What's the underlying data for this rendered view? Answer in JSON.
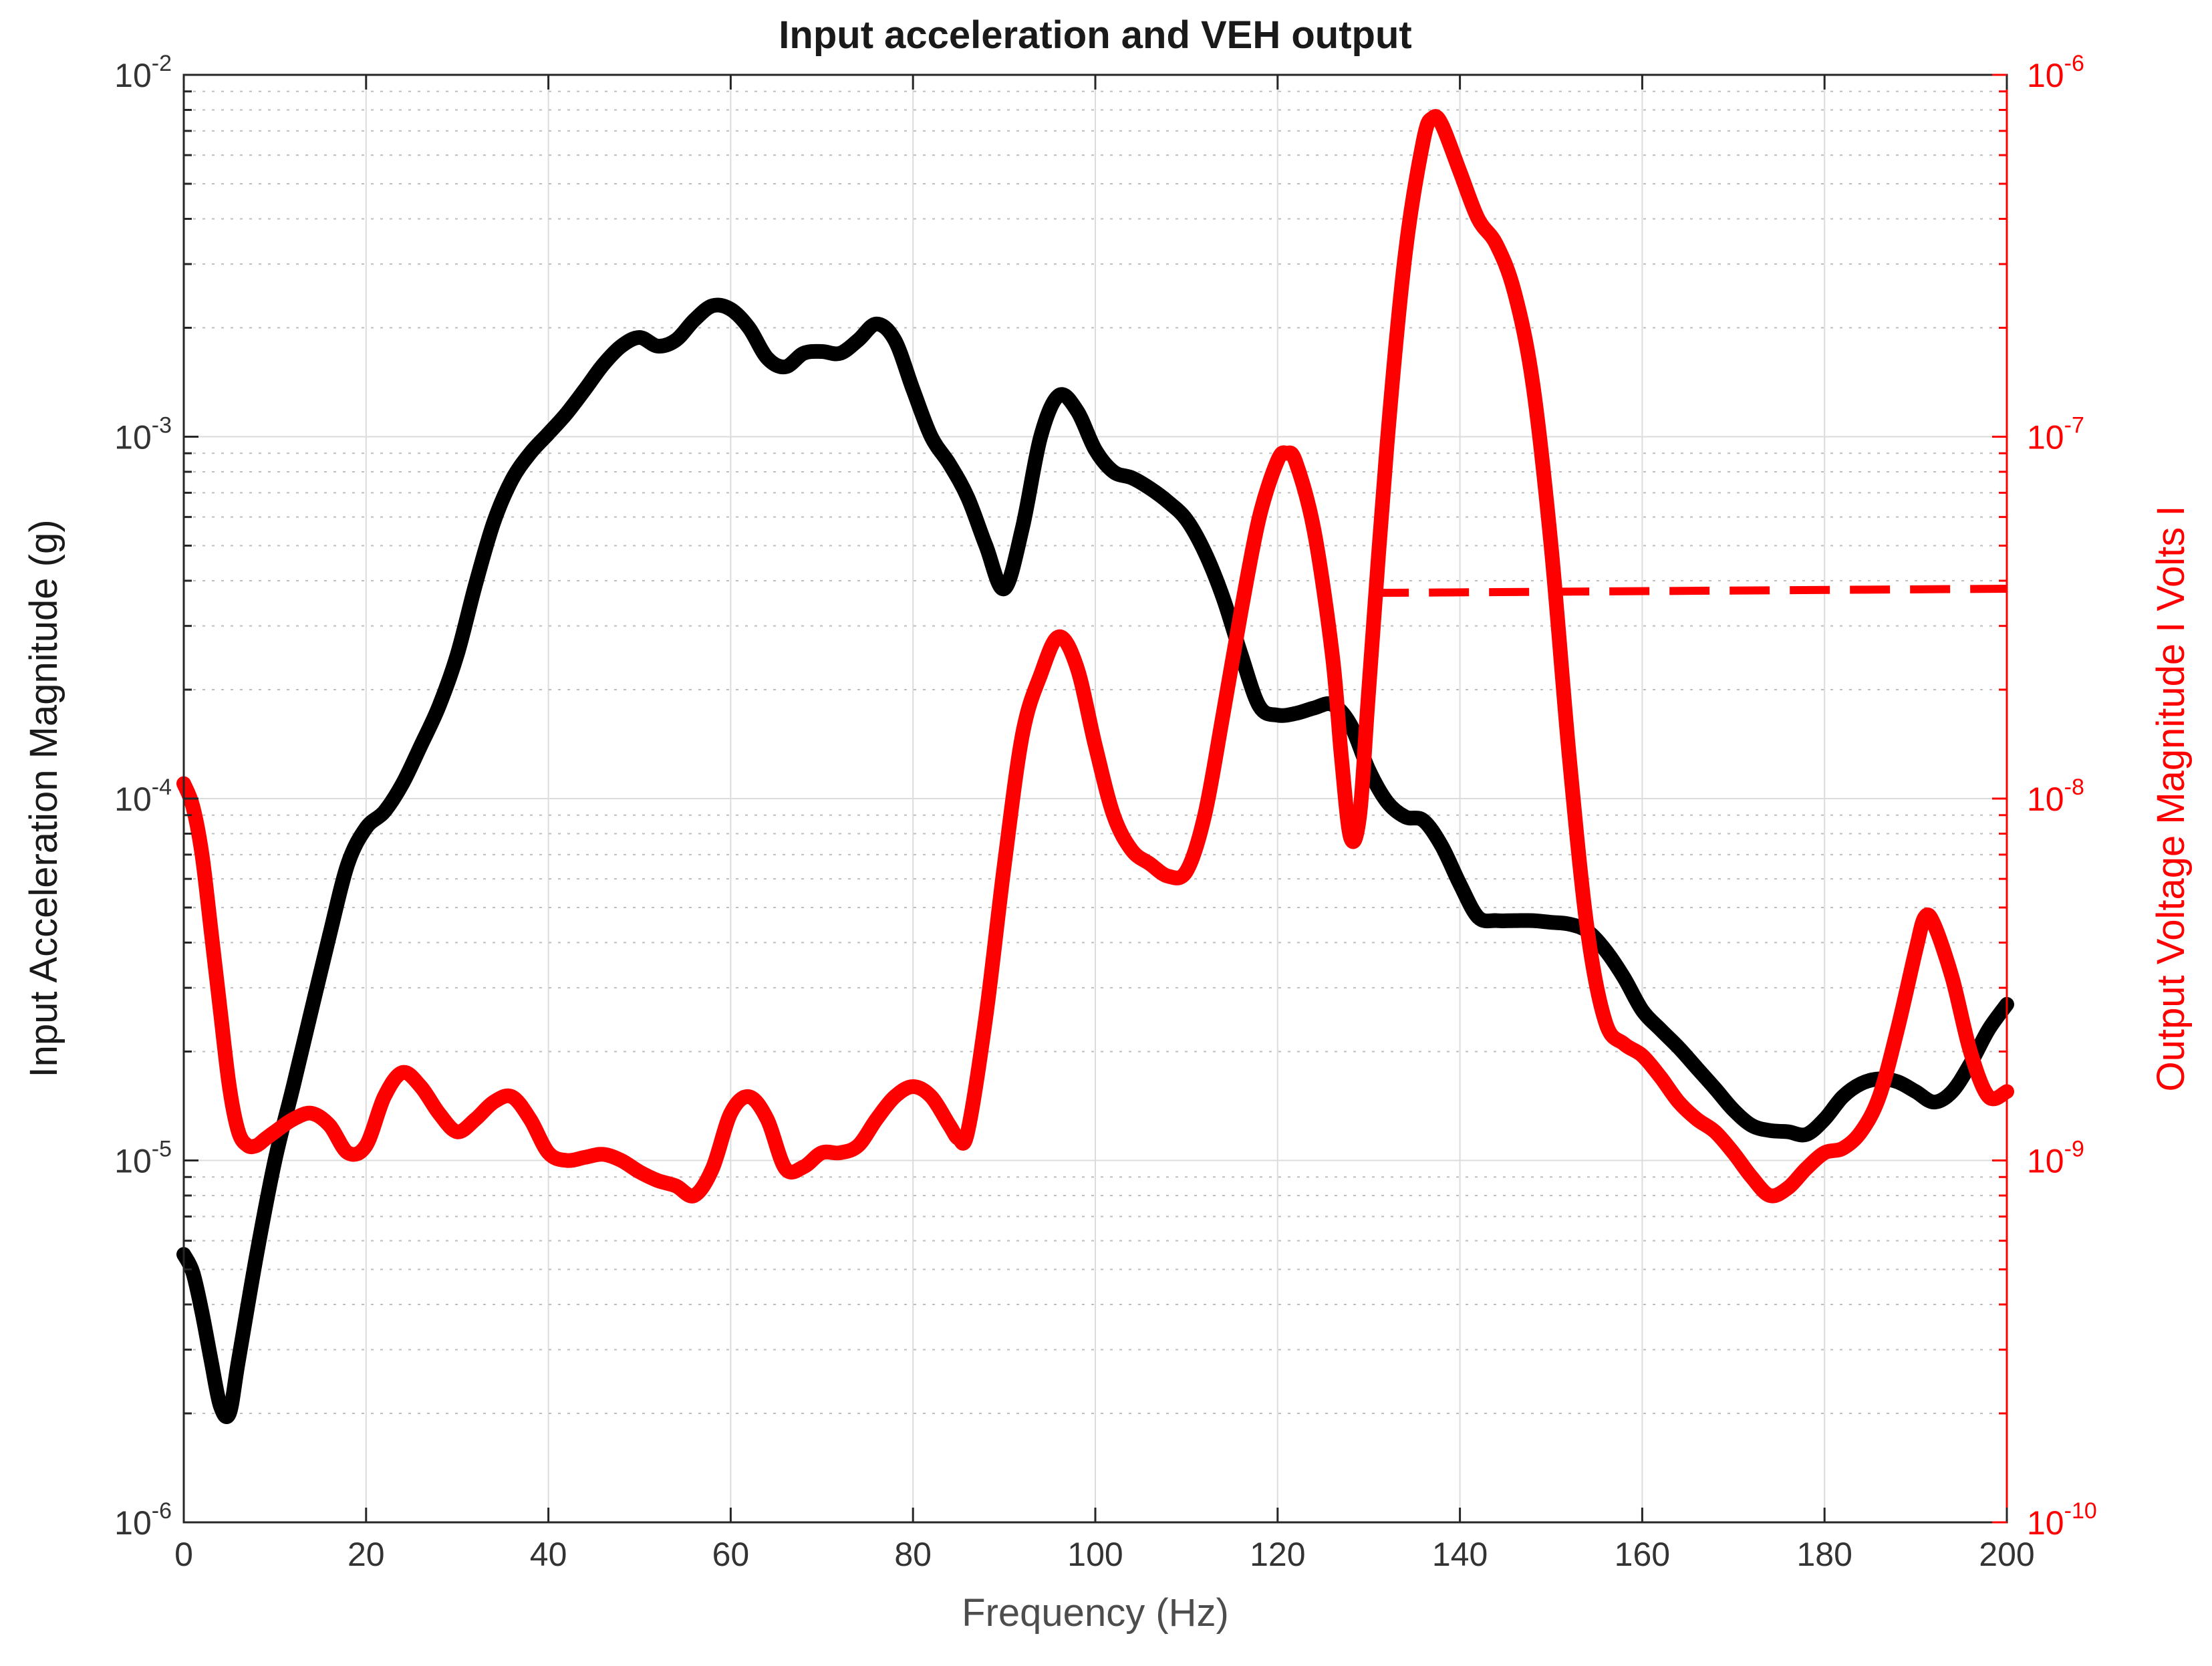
{
  "chart_data": {
    "type": "line",
    "title": "Input acceleration and VEH output",
    "xlabel": "Frequency (Hz)",
    "xlim": [
      0,
      200
    ],
    "xticks": [
      0,
      20,
      40,
      60,
      80,
      100,
      120,
      140,
      160,
      180,
      200
    ],
    "grid": true,
    "left_axis": {
      "label": "Input Acceleration Magnitude (g)",
      "scale": "log",
      "ylim": [
        1e-06,
        0.01
      ],
      "tick_exponents": [
        -6,
        -5,
        -4,
        -3,
        -2
      ],
      "color": "#000000"
    },
    "right_axis": {
      "label": "Output Voltage Magnitude I Volts I",
      "scale": "log",
      "ylim": [
        1e-10,
        1e-06
      ],
      "tick_exponents": [
        -10,
        -9,
        -8,
        -7,
        -6
      ],
      "color": "#ff0000"
    },
    "series": [
      {
        "axis": "left",
        "color": "#000000",
        "style": "solid",
        "x": [
          0,
          1,
          2,
          3,
          4,
          5,
          6,
          8,
          10,
          12,
          14,
          16,
          18,
          20,
          22,
          24,
          26,
          28,
          30,
          32,
          34,
          36,
          38,
          40,
          42,
          44,
          46,
          48,
          50,
          52,
          54,
          56,
          58,
          60,
          62,
          64,
          66,
          68,
          70,
          72,
          74,
          76,
          78,
          80,
          82,
          84,
          86,
          88,
          90,
          92,
          94,
          96,
          98,
          100,
          102,
          104,
          106,
          108,
          110,
          112,
          114,
          116,
          118,
          120,
          122,
          124,
          126,
          128,
          130,
          132,
          134,
          136,
          138,
          140,
          142,
          144,
          146,
          148,
          150,
          152,
          154,
          156,
          158,
          160,
          162,
          164,
          166,
          168,
          170,
          172,
          174,
          176,
          178,
          180,
          182,
          184,
          186,
          188,
          190,
          192,
          194,
          196,
          198,
          200
        ],
        "y": [
          5.5e-06,
          4.9e-06,
          3.8e-06,
          2.8e-06,
          2.1e-06,
          2e-06,
          2.8e-06,
          5.5e-06,
          1e-05,
          1.6e-05,
          2.6e-05,
          4.2e-05,
          6.6e-05,
          8.3e-05,
          9.2e-05,
          0.00011,
          0.00014,
          0.00018,
          0.00025,
          0.00039,
          0.00058,
          0.00076,
          0.0009,
          0.00102,
          0.00116,
          0.00135,
          0.00158,
          0.00178,
          0.00188,
          0.00178,
          0.00185,
          0.0021,
          0.0023,
          0.00225,
          0.002,
          0.00165,
          0.00156,
          0.0017,
          0.00172,
          0.0017,
          0.00185,
          0.00205,
          0.00185,
          0.00135,
          0.001,
          0.00084,
          0.00068,
          0.0005,
          0.00038,
          0.00056,
          0.001,
          0.0013,
          0.00118,
          0.00092,
          0.0008,
          0.00077,
          0.00072,
          0.00066,
          0.00059,
          0.00048,
          0.00036,
          0.00025,
          0.00018,
          0.00017,
          0.000172,
          0.000178,
          0.000182,
          0.00016,
          0.00012,
          9.8e-05,
          8.9e-05,
          8.7e-05,
          7.4e-05,
          5.8e-05,
          4.7e-05,
          4.6e-05,
          4.6e-05,
          4.6e-05,
          4.55e-05,
          4.5e-05,
          4.3e-05,
          3.8e-05,
          3.2e-05,
          2.6e-05,
          2.3e-05,
          2.05e-05,
          1.8e-05,
          1.58e-05,
          1.38e-05,
          1.25e-05,
          1.21e-05,
          1.2e-05,
          1.18e-05,
          1.3e-05,
          1.5e-05,
          1.63e-05,
          1.68e-05,
          1.65e-05,
          1.55e-05,
          1.45e-05,
          1.55e-05,
          1.85e-05,
          2.3e-05,
          2.7e-05
        ]
      },
      {
        "axis": "right",
        "color": "#ff0000",
        "style": "solid",
        "x": [
          0,
          1,
          2,
          3,
          4,
          5,
          6,
          7,
          8,
          9,
          10,
          12,
          14,
          16,
          18,
          20,
          22,
          24,
          26,
          28,
          30,
          32,
          34,
          36,
          38,
          40,
          42,
          44,
          46,
          48,
          50,
          52,
          54,
          56,
          58,
          60,
          62,
          64,
          66,
          68,
          70,
          72,
          74,
          76,
          78,
          80,
          82,
          84,
          85,
          86,
          88,
          90,
          92,
          94,
          96,
          98,
          100,
          102,
          104,
          106,
          108,
          110,
          112,
          114,
          116,
          118,
          120,
          121,
          122,
          124,
          126,
          127,
          128,
          129,
          130,
          132,
          134,
          136,
          137,
          138,
          140,
          142,
          144,
          146,
          148,
          150,
          152,
          154,
          156,
          158,
          160,
          162,
          164,
          166,
          168,
          170,
          172,
          174,
          176,
          178,
          180,
          182,
          184,
          186,
          188,
          190,
          191,
          192,
          194,
          196,
          198,
          200
        ],
        "y": [
          1.1e-08,
          9.5e-09,
          7e-09,
          4.3e-09,
          2.6e-09,
          1.6e-09,
          1.2e-09,
          1.1e-09,
          1.1e-09,
          1.15e-09,
          1.2e-09,
          1.3e-09,
          1.35e-09,
          1.25e-09,
          1.05e-09,
          1.1e-09,
          1.5e-09,
          1.75e-09,
          1.6e-09,
          1.35e-09,
          1.2e-09,
          1.3e-09,
          1.45e-09,
          1.5e-09,
          1.3e-09,
          1.05e-09,
          1e-09,
          1.02e-09,
          1.04e-09,
          1e-09,
          9.3e-10,
          8.8e-10,
          8.5e-10,
          8e-10,
          9.5e-10,
          1.35e-09,
          1.5e-09,
          1.3e-09,
          9.5e-10,
          9.6e-10,
          1.05e-09,
          1.05e-09,
          1.1e-09,
          1.3e-09,
          1.5e-09,
          1.6e-09,
          1.5e-09,
          1.25e-09,
          1.15e-09,
          1.2e-09,
          2.5e-09,
          6.5e-09,
          1.5e-08,
          2.2e-08,
          2.8e-08,
          2.3e-08,
          1.4e-08,
          9e-09,
          7.2e-09,
          6.6e-09,
          6.1e-09,
          6.3e-09,
          9e-09,
          1.7e-08,
          3.3e-08,
          6e-08,
          8.6e-08,
          9e-08,
          8.5e-08,
          5.5e-08,
          2.5e-08,
          1.3e-08,
          7.8e-09,
          9e-09,
          2e-08,
          9.5e-08,
          3.2e-07,
          6.6e-07,
          7.6e-07,
          7.3e-07,
          5.4e-07,
          4e-07,
          3.4e-07,
          2.5e-07,
          1.4e-07,
          5e-08,
          1.3e-08,
          4.3e-09,
          2.4e-09,
          2.1e-09,
          1.95e-09,
          1.7e-09,
          1.45e-09,
          1.3e-09,
          1.2e-09,
          1.05e-09,
          9e-10,
          8e-10,
          8.4e-10,
          9.5e-10,
          1.05e-09,
          1.08e-09,
          1.2e-09,
          1.5e-09,
          2.3e-09,
          3.8e-09,
          4.7e-09,
          4.5e-09,
          3.2e-09,
          2e-09,
          1.5e-09,
          1.55e-09
        ]
      },
      {
        "axis": "right",
        "color": "#ff0000",
        "style": "dashed",
        "x": [
          130,
          200
        ],
        "y": [
          3.7e-08,
          3.8e-08
        ]
      }
    ]
  }
}
